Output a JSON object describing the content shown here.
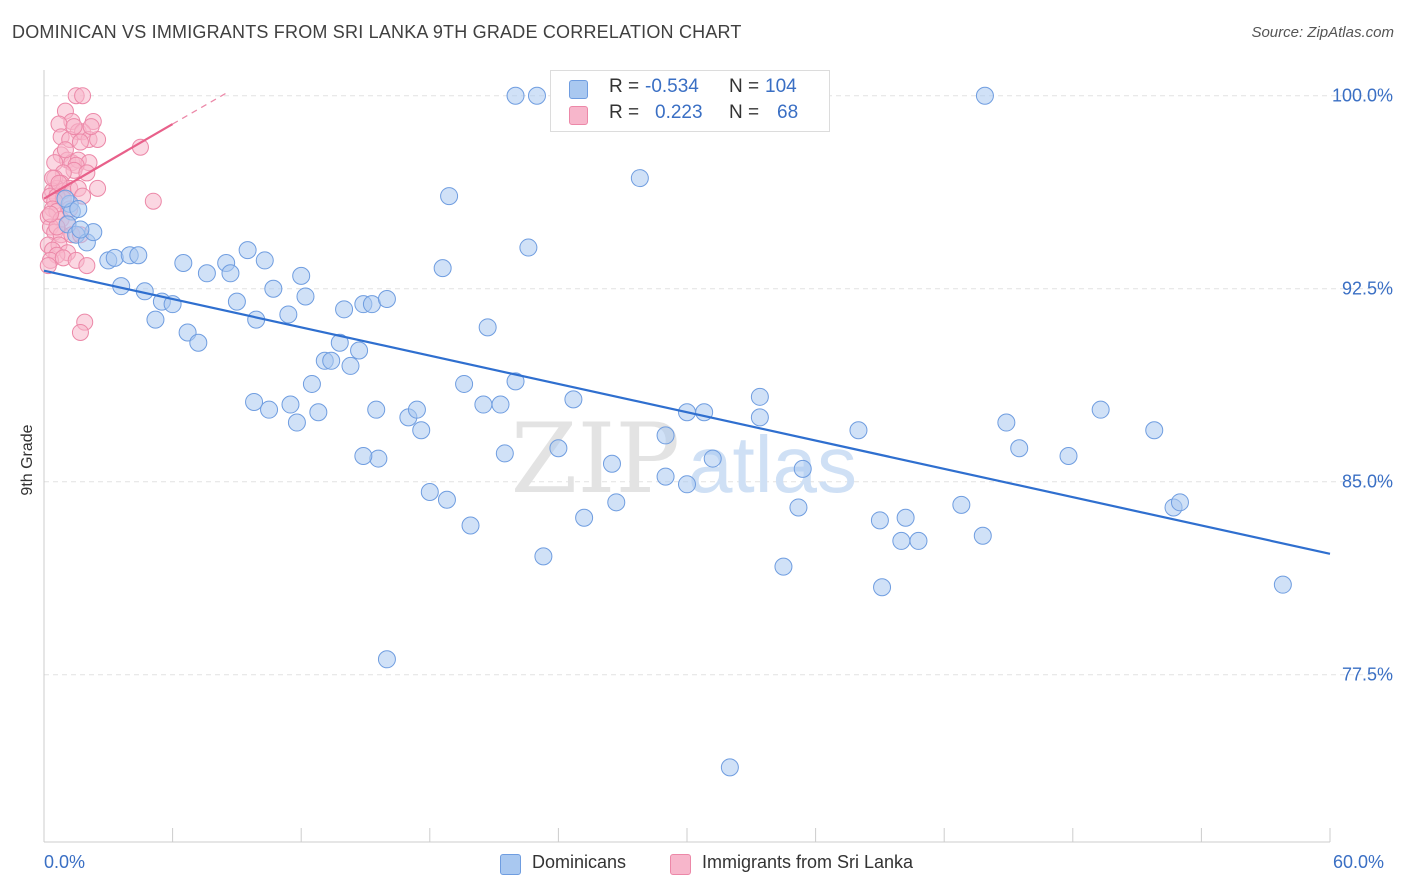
{
  "header": {
    "title": "DOMINICAN VS IMMIGRANTS FROM SRI LANKA 9TH GRADE CORRELATION CHART",
    "source": "Source: ZipAtlas.com"
  },
  "legend": {
    "series1": {
      "r_label": "R =",
      "r_value": "-0.534",
      "n_label": "N =",
      "n_value": "104"
    },
    "series2": {
      "r_label": "R =",
      "r_value": "0.223",
      "n_label": "N =",
      "n_value": "68"
    }
  },
  "bottom_legend": {
    "series1": "Dominicans",
    "series2": "Immigrants from Sri Lanka"
  },
  "watermark": {
    "zip": "ZIP",
    "atlas": "atlas"
  },
  "colors": {
    "blue_fill": "#a9c8f0",
    "blue_stroke": "#6f9de0",
    "blue_line": "#2f6fcf",
    "pink_fill": "#f7b6cb",
    "pink_stroke": "#ec88a8",
    "pink_line": "#e8608a",
    "axis_text": "#3a6fc4"
  },
  "chart_data": {
    "type": "scatter",
    "title": "DOMINICAN VS IMMIGRANTS FROM SRI LANKA 9TH GRADE CORRELATION CHART",
    "xlabel": "",
    "ylabel": "9th Grade",
    "xlim": [
      0,
      60
    ],
    "ylim": [
      71,
      101
    ],
    "x_tick_labels": [
      "0.0%",
      "60.0%"
    ],
    "y_ticks": [
      77.5,
      85.0,
      92.5,
      100.0
    ],
    "y_tick_labels": [
      "77.5%",
      "85.0%",
      "92.5%",
      "100.0%"
    ],
    "grid": true,
    "legend_position": "top-center",
    "series": [
      {
        "name": "Dominicans",
        "r": -0.534,
        "n": 104,
        "trend": {
          "x": [
            0,
            60
          ],
          "y": [
            93.2,
            82.2
          ]
        },
        "points": [
          [
            1.2,
            95.8
          ],
          [
            1.3,
            95.5
          ],
          [
            1.1,
            95.0
          ],
          [
            1.5,
            94.6
          ],
          [
            2.0,
            94.3
          ],
          [
            2.3,
            94.7
          ],
          [
            1.7,
            94.8
          ],
          [
            1.0,
            96.0
          ],
          [
            1.6,
            95.6
          ],
          [
            3.0,
            93.6
          ],
          [
            3.3,
            93.7
          ],
          [
            4.0,
            93.8
          ],
          [
            4.4,
            93.8
          ],
          [
            3.6,
            92.6
          ],
          [
            4.7,
            92.4
          ],
          [
            5.5,
            92.0
          ],
          [
            5.2,
            91.3
          ],
          [
            6.0,
            91.9
          ],
          [
            6.5,
            93.5
          ],
          [
            6.7,
            90.8
          ],
          [
            7.6,
            93.1
          ],
          [
            7.2,
            90.4
          ],
          [
            8.5,
            93.5
          ],
          [
            8.7,
            93.1
          ],
          [
            9.0,
            92.0
          ],
          [
            9.5,
            94.0
          ],
          [
            9.9,
            91.3
          ],
          [
            10.3,
            93.6
          ],
          [
            10.7,
            92.5
          ],
          [
            11.4,
            91.5
          ],
          [
            12.0,
            93.0
          ],
          [
            12.2,
            92.2
          ],
          [
            9.8,
            88.1
          ],
          [
            10.5,
            87.8
          ],
          [
            11.5,
            88.0
          ],
          [
            11.8,
            87.3
          ],
          [
            12.5,
            88.8
          ],
          [
            12.8,
            87.7
          ],
          [
            13.1,
            89.7
          ],
          [
            13.4,
            89.7
          ],
          [
            13.8,
            90.4
          ],
          [
            14.3,
            89.5
          ],
          [
            14.0,
            91.7
          ],
          [
            14.9,
            91.9
          ],
          [
            15.3,
            91.9
          ],
          [
            14.7,
            90.1
          ],
          [
            16.0,
            92.1
          ],
          [
            15.6,
            85.9
          ],
          [
            14.9,
            86.0
          ],
          [
            15.5,
            87.8
          ],
          [
            17.0,
            87.5
          ],
          [
            17.4,
            87.8
          ],
          [
            17.6,
            87.0
          ],
          [
            18.0,
            84.6
          ],
          [
            18.6,
            93.3
          ],
          [
            18.8,
            84.3
          ],
          [
            18.9,
            96.1
          ],
          [
            19.6,
            88.8
          ],
          [
            19.9,
            83.3
          ],
          [
            20.7,
            91.0
          ],
          [
            20.5,
            88.0
          ],
          [
            21.3,
            88.0
          ],
          [
            21.5,
            86.1
          ],
          [
            22.0,
            88.9
          ],
          [
            22.6,
            94.1
          ],
          [
            23.3,
            82.1
          ],
          [
            22.0,
            100.0
          ],
          [
            23.0,
            100.0
          ],
          [
            24.0,
            86.3
          ],
          [
            24.7,
            88.2
          ],
          [
            25.2,
            83.6
          ],
          [
            26.5,
            85.7
          ],
          [
            26.7,
            84.2
          ],
          [
            27.8,
            96.8
          ],
          [
            29.0,
            85.2
          ],
          [
            29.0,
            86.8
          ],
          [
            30.0,
            84.9
          ],
          [
            30.0,
            87.7
          ],
          [
            30.8,
            87.7
          ],
          [
            31.2,
            85.9
          ],
          [
            32.0,
            73.9
          ],
          [
            32.4,
            100.0
          ],
          [
            33.4,
            87.5
          ],
          [
            33.4,
            88.3
          ],
          [
            34.5,
            81.7
          ],
          [
            35.2,
            84.0
          ],
          [
            35.4,
            85.5
          ],
          [
            38.0,
            87.0
          ],
          [
            39.0,
            83.5
          ],
          [
            39.1,
            80.9
          ],
          [
            40.0,
            82.7
          ],
          [
            40.2,
            83.6
          ],
          [
            40.8,
            82.7
          ],
          [
            42.8,
            84.1
          ],
          [
            43.8,
            82.9
          ],
          [
            44.9,
            87.3
          ],
          [
            45.5,
            86.3
          ],
          [
            43.9,
            100.0
          ],
          [
            47.8,
            86.0
          ],
          [
            49.3,
            87.8
          ],
          [
            51.8,
            87.0
          ],
          [
            52.7,
            84.0
          ],
          [
            53.0,
            84.2
          ],
          [
            57.8,
            81.0
          ],
          [
            16.0,
            78.1
          ]
        ]
      },
      {
        "name": "Immigrants from Sri Lanka",
        "r": 0.223,
        "n": 68,
        "trend": {
          "x": [
            0,
            6
          ],
          "y": [
            96.0,
            98.9
          ]
        },
        "trend_extension": {
          "x": [
            6,
            8.5
          ],
          "y": [
            98.9,
            100.1
          ]
        },
        "points": [
          [
            1.5,
            100.0
          ],
          [
            1.8,
            100.0
          ],
          [
            1.0,
            99.4
          ],
          [
            1.3,
            99.0
          ],
          [
            0.7,
            98.9
          ],
          [
            2.3,
            99.0
          ],
          [
            1.6,
            98.6
          ],
          [
            1.8,
            98.6
          ],
          [
            0.8,
            98.4
          ],
          [
            1.2,
            98.3
          ],
          [
            2.1,
            98.3
          ],
          [
            2.5,
            98.3
          ],
          [
            1.7,
            98.2
          ],
          [
            4.5,
            98.0
          ],
          [
            0.8,
            97.7
          ],
          [
            1.1,
            97.5
          ],
          [
            1.3,
            97.4
          ],
          [
            1.6,
            97.5
          ],
          [
            0.5,
            97.4
          ],
          [
            2.1,
            97.4
          ],
          [
            1.5,
            97.3
          ],
          [
            1.4,
            97.1
          ],
          [
            0.9,
            97.0
          ],
          [
            0.5,
            96.8
          ],
          [
            0.8,
            96.6
          ],
          [
            0.6,
            96.4
          ],
          [
            0.4,
            96.3
          ],
          [
            0.9,
            96.3
          ],
          [
            1.2,
            96.4
          ],
          [
            1.6,
            96.4
          ],
          [
            2.5,
            96.4
          ],
          [
            0.3,
            96.1
          ],
          [
            0.6,
            96.1
          ],
          [
            0.9,
            96.0
          ],
          [
            0.5,
            95.9
          ],
          [
            5.1,
            95.9
          ],
          [
            0.4,
            95.6
          ],
          [
            0.6,
            95.5
          ],
          [
            0.2,
            95.3
          ],
          [
            0.8,
            95.2
          ],
          [
            1.1,
            95.0
          ],
          [
            0.3,
            94.9
          ],
          [
            0.5,
            94.7
          ],
          [
            0.8,
            94.6
          ],
          [
            1.3,
            94.6
          ],
          [
            1.7,
            94.6
          ],
          [
            0.2,
            94.2
          ],
          [
            0.7,
            94.2
          ],
          [
            0.4,
            94.0
          ],
          [
            1.1,
            93.9
          ],
          [
            0.6,
            93.8
          ],
          [
            0.3,
            93.6
          ],
          [
            0.9,
            93.7
          ],
          [
            1.5,
            93.6
          ],
          [
            2.0,
            93.4
          ],
          [
            0.2,
            93.4
          ],
          [
            1.9,
            91.2
          ],
          [
            1.7,
            90.8
          ],
          [
            0.4,
            96.8
          ],
          [
            1.0,
            97.9
          ],
          [
            1.4,
            98.8
          ],
          [
            2.0,
            97.0
          ],
          [
            0.6,
            94.9
          ],
          [
            1.2,
            95.6
          ],
          [
            0.7,
            96.6
          ],
          [
            1.8,
            96.1
          ],
          [
            2.2,
            98.8
          ],
          [
            0.3,
            95.4
          ]
        ]
      }
    ]
  }
}
